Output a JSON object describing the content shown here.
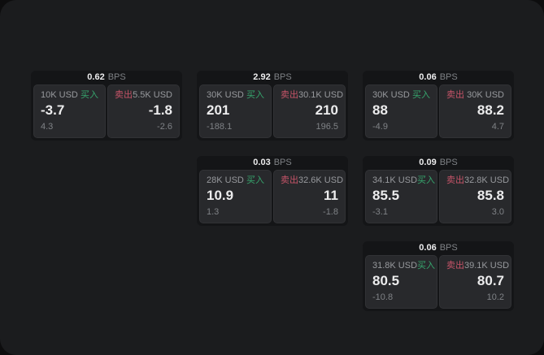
{
  "theme": {
    "outer_bg": "#0d0d0e",
    "window_bg": "#1b1c1e",
    "card_bg": "#141517",
    "panel_bg": "#28292c",
    "panel_border": "rgba(255,255,255,0.045)",
    "text_primary": "#ececed",
    "text_secondary": "#97999d",
    "text_muted": "#7f8286",
    "buy_green": "#36a56d",
    "sell_red": "#c65468"
  },
  "labels": {
    "bps_unit": "BPS",
    "buy": "买入",
    "sell": "卖出"
  },
  "cards": [
    {
      "bps": "0.62",
      "grid": {
        "col": 1,
        "row": 1
      },
      "buy": {
        "notional": "10K USD",
        "price": "-3.7",
        "change": "4.3"
      },
      "sell": {
        "notional": "5.5K USD",
        "price": "-1.8",
        "change": "-2.6"
      }
    },
    {
      "bps": "2.92",
      "grid": {
        "col": 2,
        "row": 1
      },
      "buy": {
        "notional": "30K USD",
        "price": "201",
        "change": "-188.1"
      },
      "sell": {
        "notional": "30.1K USD",
        "price": "210",
        "change": "196.5"
      }
    },
    {
      "bps": "0.06",
      "grid": {
        "col": 3,
        "row": 1
      },
      "buy": {
        "notional": "30K USD",
        "price": "88",
        "change": "-4.9"
      },
      "sell": {
        "notional": "30K USD",
        "price": "88.2",
        "change": "4.7"
      }
    },
    {
      "bps": "0.03",
      "grid": {
        "col": 2,
        "row": 2
      },
      "buy": {
        "notional": "28K USD",
        "price": "10.9",
        "change": "1.3"
      },
      "sell": {
        "notional": "32.6K USD",
        "price": "11",
        "change": "-1.8"
      }
    },
    {
      "bps": "0.09",
      "grid": {
        "col": 3,
        "row": 2
      },
      "buy": {
        "notional": "34.1K USD",
        "price": "85.5",
        "change": "-3.1"
      },
      "sell": {
        "notional": "32.8K USD",
        "price": "85.8",
        "change": "3.0"
      }
    },
    {
      "bps": "0.06",
      "grid": {
        "col": 3,
        "row": 3
      },
      "buy": {
        "notional": "31.8K USD",
        "price": "80.5",
        "change": "-10.8"
      },
      "sell": {
        "notional": "39.1K USD",
        "price": "80.7",
        "change": "10.2"
      }
    }
  ]
}
